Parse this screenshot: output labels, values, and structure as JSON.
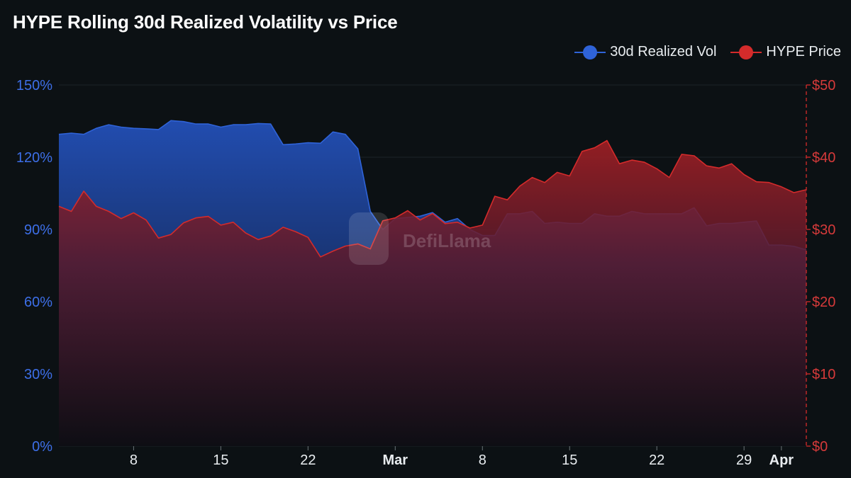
{
  "title": "HYPE Rolling 30d Realized Volatility vs Price",
  "watermark": "DefiLlama",
  "colors": {
    "vol": "#2f63d8",
    "price": "#d42b2b",
    "background": "#0c1114"
  },
  "chart_data": {
    "type": "area",
    "title": "HYPE Rolling 30d Realized Volatility vs Price",
    "x_ticks": [
      {
        "label": "8",
        "day": 6,
        "bold": false
      },
      {
        "label": "15",
        "day": 13,
        "bold": false
      },
      {
        "label": "22",
        "day": 20,
        "bold": false
      },
      {
        "label": "Mar",
        "day": 27,
        "bold": true
      },
      {
        "label": "8",
        "day": 34,
        "bold": false
      },
      {
        "label": "15",
        "day": 41,
        "bold": false
      },
      {
        "label": "22",
        "day": 48,
        "bold": false
      },
      {
        "label": "29",
        "day": 55,
        "bold": false
      },
      {
        "label": "Apr",
        "day": 58,
        "bold": true
      }
    ],
    "y_left": {
      "label": "30d Realized Vol",
      "min": 0,
      "max": 150,
      "ticks": [
        "0%",
        "30%",
        "60%",
        "90%",
        "120%",
        "150%"
      ]
    },
    "y_right": {
      "label": "HYPE Price",
      "min": 0,
      "max": 50,
      "ticks": [
        "$0",
        "$10",
        "$20",
        "$30",
        "$40",
        "$50"
      ]
    },
    "x_range": [
      0,
      60
    ],
    "series": [
      {
        "name": "30d Realized Vol",
        "axis": "left",
        "color": "#2f63d8",
        "values": [
          129.5,
          130,
          129.5,
          132,
          133.5,
          132.5,
          132,
          131.8,
          131.5,
          135.2,
          134.8,
          133.8,
          133.8,
          132.5,
          133.5,
          133.5,
          134,
          133.8,
          125.2,
          125.5,
          126,
          125.8,
          130.5,
          129.5,
          123.5,
          97.5,
          90,
          94.5,
          95,
          95.5,
          97,
          93,
          94.5,
          90,
          87.5,
          87.5,
          96.5,
          96.5,
          97.5,
          92.5,
          93,
          92.5,
          92.5,
          96.5,
          95.5,
          95.5,
          97.5,
          96.5,
          96.5,
          96.5,
          96.5,
          99,
          91.5,
          92.5,
          92.5,
          93,
          93.5,
          83.5,
          83.5,
          83,
          81.5
        ]
      },
      {
        "name": "HYPE Price",
        "axis": "right",
        "color": "#d42b2b",
        "values": [
          33.2,
          32.5,
          35.3,
          33.2,
          32.5,
          31.5,
          32.3,
          31.3,
          28.8,
          29.3,
          30.9,
          31.6,
          31.8,
          30.6,
          31.0,
          29.5,
          28.6,
          29.1,
          30.3,
          29.7,
          28.9,
          26.2,
          27.0,
          27.7,
          28.0,
          27.3,
          31.2,
          31.6,
          32.6,
          31.3,
          32.2,
          30.8,
          31.0,
          30.2,
          30.6,
          34.6,
          34.1,
          36.0,
          37.2,
          36.5,
          37.9,
          37.4,
          40.8,
          41.3,
          42.3,
          39.1,
          39.6,
          39.3,
          38.4,
          37.2,
          40.4,
          40.2,
          38.8,
          38.5,
          39.1,
          37.6,
          36.6,
          36.5,
          35.9,
          35.1,
          35.5
        ]
      }
    ]
  }
}
